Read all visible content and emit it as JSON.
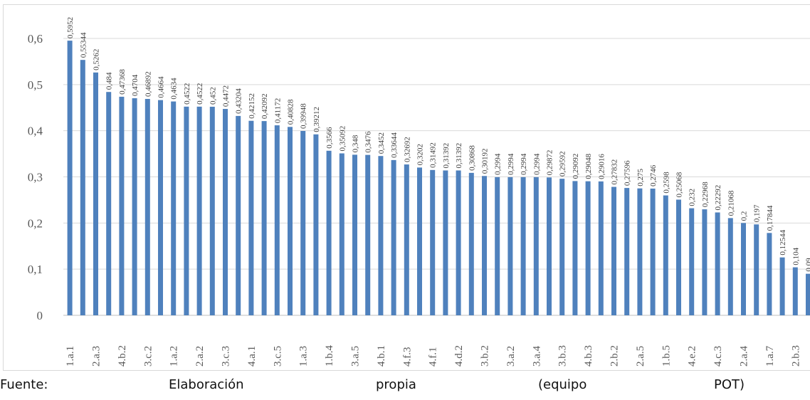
{
  "chart_data": {
    "type": "bar",
    "title": "",
    "xlabel": "",
    "ylabel": "",
    "ylim": [
      0,
      0.65
    ],
    "y_ticks": [
      "0",
      "0,1",
      "0,2",
      "0,3",
      "0,4",
      "0,5",
      "0,6"
    ],
    "y_tick_values": [
      0,
      0.1,
      0.2,
      0.3,
      0.4,
      0.5,
      0.6
    ],
    "grid": "horizontal",
    "legend": "none",
    "bar_color": "#4f81bd",
    "categories": [
      "1.a.1",
      "",
      "2.a.3",
      "",
      "4.b.2",
      "",
      "3.c.2",
      "",
      "1.a.2",
      "",
      "2.a.2",
      "",
      "3.c.3",
      "",
      "4.a.1",
      "",
      "3.c.5",
      "",
      "1.a.3",
      "",
      "1.b.4",
      "",
      "3.a.5",
      "",
      "4.b.1",
      "",
      "4.f.3",
      "",
      "4.f.1",
      "",
      "4.d.2",
      "",
      "3.b.2",
      "",
      "3.a.2",
      "",
      "3.a.4",
      "",
      "3.b.3",
      "",
      "4.b.3",
      "",
      "2.b.2",
      "",
      "2.a.5",
      "",
      "1.b.5",
      "",
      "4.e.2",
      "",
      "4.c.3",
      "",
      "2.a.4",
      "",
      "1.a.7",
      "",
      "2.b.3",
      ""
    ],
    "values": [
      0.5952,
      0.55344,
      0.5262,
      0.484,
      0.47368,
      0.4704,
      0.46892,
      0.4664,
      0.4634,
      0.4522,
      0.4522,
      0.452,
      0.4472,
      0.43204,
      0.42152,
      0.42092,
      0.41172,
      0.40828,
      0.39948,
      0.39212,
      0.3566,
      0.35092,
      0.348,
      0.3476,
      0.3452,
      0.33644,
      0.32692,
      0.3202,
      0.31492,
      0.31392,
      0.31392,
      0.30868,
      0.30192,
      0.2994,
      0.2994,
      0.2994,
      0.2994,
      0.29872,
      0.29592,
      0.29092,
      0.29048,
      0.29016,
      0.27832,
      0.27596,
      0.275,
      0.2746,
      0.2598,
      0.25068,
      0.232,
      0.22968,
      0.22292,
      0.21068,
      0.2,
      0.197,
      0.17844,
      0.12544,
      0.104,
      0.09
    ],
    "data_labels": [
      "0,5952",
      "0,55344",
      "0,5262",
      "0,484",
      "0,47368",
      "0,4704",
      "0,46892",
      "0,4664",
      "0,4634",
      "0,4522",
      "0,4522",
      "0,452",
      "0,4472",
      "0,43204",
      "0,42152",
      "0,42092",
      "0,41172",
      "0,40828",
      "0,39948",
      "0,39212",
      "0,3566",
      "0,35092",
      "0,348",
      "0,3476",
      "0,3452",
      "0,33644",
      "0,32692",
      "0,3202",
      "0,31492",
      "0,31392",
      "0,31392",
      "0,30868",
      "0,30192",
      "0,2994",
      "0,2994",
      "0,2994",
      "0,2994",
      "0,29872",
      "0,29592",
      "0,29092",
      "0,29048",
      "0,29016",
      "0,27832",
      "0,27596",
      "0,275",
      "0,2746",
      "0,2598",
      "0,25068",
      "0,232",
      "0,22968",
      "0,22292",
      "0,21068",
      "0,2",
      "0,197",
      "0,17844",
      "0,12544",
      "0,104",
      "0,09"
    ]
  },
  "footer": {
    "words": [
      "Fuente:",
      "Elaboración",
      "propia",
      "(equipo",
      "POT)"
    ]
  }
}
